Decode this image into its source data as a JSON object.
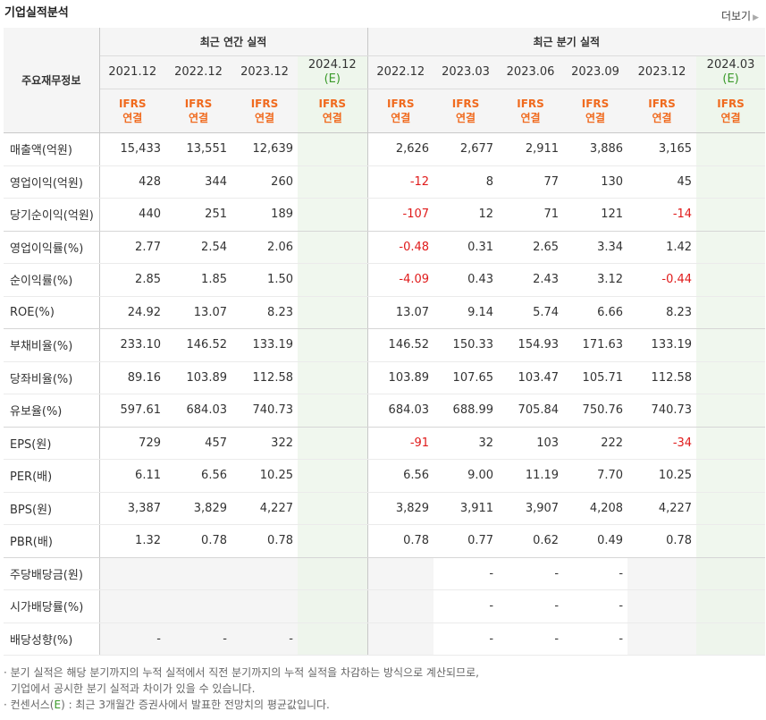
{
  "title": "기업실적분석",
  "more": "더보기",
  "header": {
    "label": "주요재무정보",
    "annual_group": "최근 연간 실적",
    "quarter_group": "최근 분기 실적",
    "annual_dates": [
      "2021.12",
      "2022.12",
      "2023.12",
      "2024.12"
    ],
    "annual_est": [
      "",
      "",
      "",
      "(E)"
    ],
    "quarter_dates": [
      "2022.12",
      "2023.03",
      "2023.06",
      "2023.09",
      "2023.12",
      "2024.03"
    ],
    "quarter_est": [
      "",
      "",
      "",
      "",
      "",
      "(E)"
    ],
    "ifrs": "IFRS",
    "consolidated": "연결"
  },
  "rows": [
    {
      "label": "매출액(억원)",
      "values": [
        "15,433",
        "13,551",
        "12,639",
        "",
        "2,626",
        "2,677",
        "2,911",
        "3,886",
        "3,165",
        ""
      ]
    },
    {
      "label": "영업이익(억원)",
      "values": [
        "428",
        "344",
        "260",
        "",
        "-12",
        "8",
        "77",
        "130",
        "45",
        ""
      ]
    },
    {
      "label": "당기순이익(억원)",
      "values": [
        "440",
        "251",
        "189",
        "",
        "-107",
        "12",
        "71",
        "121",
        "-14",
        ""
      ]
    },
    {
      "label": "영업이익률(%)",
      "values": [
        "2.77",
        "2.54",
        "2.06",
        "",
        "-0.48",
        "0.31",
        "2.65",
        "3.34",
        "1.42",
        ""
      ]
    },
    {
      "label": "순이익률(%)",
      "values": [
        "2.85",
        "1.85",
        "1.50",
        "",
        "-4.09",
        "0.43",
        "2.43",
        "3.12",
        "-0.44",
        ""
      ]
    },
    {
      "label": "ROE(%)",
      "values": [
        "24.92",
        "13.07",
        "8.23",
        "",
        "13.07",
        "9.14",
        "5.74",
        "6.66",
        "8.23",
        ""
      ]
    },
    {
      "label": "부채비율(%)",
      "values": [
        "233.10",
        "146.52",
        "133.19",
        "",
        "146.52",
        "150.33",
        "154.93",
        "171.63",
        "133.19",
        ""
      ]
    },
    {
      "label": "당좌비율(%)",
      "values": [
        "89.16",
        "103.89",
        "112.58",
        "",
        "103.89",
        "107.65",
        "103.47",
        "105.71",
        "112.58",
        ""
      ]
    },
    {
      "label": "유보율(%)",
      "values": [
        "597.61",
        "684.03",
        "740.73",
        "",
        "684.03",
        "688.99",
        "705.84",
        "750.76",
        "740.73",
        ""
      ]
    },
    {
      "label": "EPS(원)",
      "values": [
        "729",
        "457",
        "322",
        "",
        "-91",
        "32",
        "103",
        "222",
        "-34",
        ""
      ]
    },
    {
      "label": "PER(배)",
      "values": [
        "6.11",
        "6.56",
        "10.25",
        "",
        "6.56",
        "9.00",
        "11.19",
        "7.70",
        "10.25",
        ""
      ]
    },
    {
      "label": "BPS(원)",
      "values": [
        "3,387",
        "3,829",
        "4,227",
        "",
        "3,829",
        "3,911",
        "3,907",
        "4,208",
        "4,227",
        ""
      ]
    },
    {
      "label": "PBR(배)",
      "values": [
        "1.32",
        "0.78",
        "0.78",
        "",
        "0.78",
        "0.77",
        "0.62",
        "0.49",
        "0.78",
        ""
      ]
    },
    {
      "label": "주당배당금(원)",
      "values": [
        "",
        "",
        "",
        "",
        "",
        "-",
        "-",
        "-",
        "",
        ""
      ]
    },
    {
      "label": "시가배당률(%)",
      "values": [
        "",
        "",
        "",
        "",
        "",
        "-",
        "-",
        "-",
        "",
        ""
      ]
    },
    {
      "label": "배당성향(%)",
      "values": [
        "-",
        "-",
        "-",
        "",
        "",
        "-",
        "-",
        "-",
        "",
        ""
      ]
    }
  ],
  "footnotes": [
    "· 분기 실적은 해당 분기까지의 누적 실적에서 직전 분기까지의 누적 실적을 차감하는 방식으로 계산되므로,",
    "  기업에서 공시한 분기 실적과 차이가 있을 수 있습니다.",
    "· 컨센서스(",
    "E",
    ") : 최근 3개월간 증권사에서 발표한 전망치의 평균값입니다."
  ]
}
